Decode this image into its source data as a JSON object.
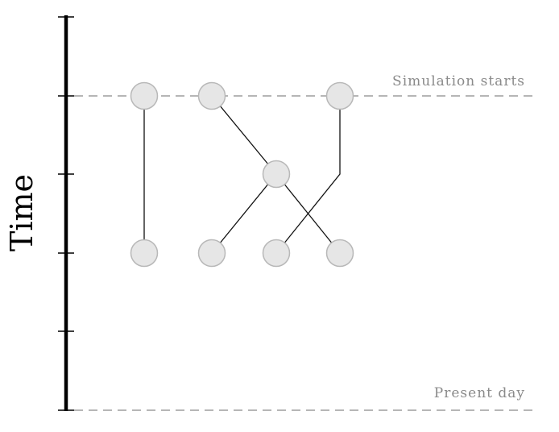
{
  "diagram": {
    "axis_label": "Time",
    "reference_lines": {
      "simulation_start": "Simulation starts",
      "present_day": "Present day"
    },
    "colors": {
      "axis": "#000000",
      "node_fill": "#e6e6e6",
      "node_stroke": "#b8b8b8",
      "edge": "#111111",
      "reference_line": "#9e9e9e",
      "reference_text": "#8a8a8a"
    },
    "nodes": [
      {
        "id": "top-1",
        "level": "simulation-start"
      },
      {
        "id": "top-2",
        "level": "simulation-start"
      },
      {
        "id": "top-3",
        "level": "simulation-start"
      },
      {
        "id": "mid-1",
        "level": "intermediate"
      },
      {
        "id": "bottom-1",
        "level": "recent"
      },
      {
        "id": "bottom-2",
        "level": "recent"
      },
      {
        "id": "bottom-3",
        "level": "recent"
      },
      {
        "id": "bottom-4",
        "level": "recent"
      }
    ],
    "edges": [
      {
        "from": "top-1",
        "to": "bottom-1"
      },
      {
        "from": "top-2",
        "to": "mid-1"
      },
      {
        "from": "mid-1",
        "to": "bottom-2"
      },
      {
        "from": "mid-1",
        "to": "bottom-4"
      },
      {
        "from": "top-3",
        "to": "bottom-3"
      }
    ]
  }
}
